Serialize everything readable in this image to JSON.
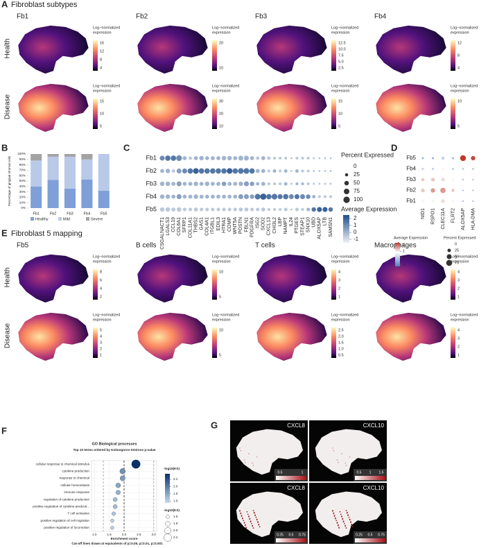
{
  "panel_a": {
    "letter": "A",
    "title": "Fibroblast subtypes",
    "columns": [
      "Fb1",
      "Fb2",
      "Fb3",
      "Fb4"
    ],
    "rows": [
      "Health",
      "Disease"
    ],
    "legend_title": [
      "Log−normalized",
      "expression"
    ],
    "colorbar_labels": [
      [
        [
          "16",
          "12",
          "8",
          "4"
        ],
        [
          "20",
          "10"
        ],
        [
          "12.5",
          "10.0",
          "7.5",
          "5.0",
          "2.5"
        ],
        [
          "12",
          "8",
          "4"
        ]
      ],
      [
        [
          "15",
          "10",
          "5"
        ],
        [
          "30",
          "20",
          "10"
        ],
        [
          "15",
          "10",
          "5"
        ],
        [
          "10",
          "5"
        ]
      ]
    ]
  },
  "panel_b": {
    "letter": "B",
    "type": "bar",
    "y_label": "Percentage of gingival stromal cells",
    "categories": [
      "Fb1",
      "Fb2",
      "Fb3",
      "Fb4",
      "Fb5"
    ],
    "series": [
      {
        "name": "Healthy",
        "color": "#7f9fd8",
        "values": [
          40,
          52,
          36,
          53,
          32
        ]
      },
      {
        "name": "Mild",
        "color": "#b9c9e8",
        "values": [
          48,
          43,
          59,
          37,
          68
        ]
      },
      {
        "name": "Severe",
        "color": "#a3a3a3",
        "values": [
          12,
          5,
          5,
          10,
          0
        ]
      }
    ],
    "ylim": [
      0,
      100
    ],
    "yticks": [
      {
        "value": 0,
        "label": "0%"
      },
      {
        "value": 10,
        "label": "10%"
      },
      {
        "value": 20,
        "label": "20%"
      },
      {
        "value": 30,
        "label": "30%"
      },
      {
        "value": 40,
        "label": "40%"
      },
      {
        "value": 50,
        "label": "50%"
      },
      {
        "value": 60,
        "label": "60%"
      },
      {
        "value": 70,
        "label": "70%"
      },
      {
        "value": 80,
        "label": "80%"
      },
      {
        "value": 90,
        "label": "90%"
      },
      {
        "value": 100,
        "label": "100%"
      }
    ]
  },
  "panel_c": {
    "letter": "C",
    "rows": [
      "Fb1",
      "Fb2",
      "Fb3",
      "Fb4",
      "Fb5"
    ],
    "genes": [
      "CSGALNACT1",
      "LGALS3",
      "CCL19",
      "COL6A1",
      "SFRP1",
      "COL11A1",
      "THBS2",
      "GAS1",
      "COL4A1",
      "ITGBL1",
      "EDIL3",
      "HTRA1",
      "COMP",
      "WNT5A",
      "POSTN",
      "FBLN1",
      "PDGFRA",
      "ISG2",
      "SOD2",
      "CXCL13",
      "CHI3L2",
      "LBP",
      "NAMPT",
      "IL24",
      "PTGES",
      "STEAP1",
      "SNX10",
      "UBD",
      "ALOX5AP",
      "LTB",
      "SAMSN1"
    ],
    "percent": [
      [
        60,
        70,
        70,
        80,
        40,
        30,
        40,
        50,
        40,
        40,
        40,
        50,
        50,
        40,
        60,
        60,
        40,
        30,
        40,
        30,
        20,
        20,
        20,
        10,
        20,
        20,
        20,
        10,
        10,
        10,
        10
      ],
      [
        40,
        50,
        30,
        60,
        60,
        70,
        80,
        70,
        70,
        70,
        70,
        70,
        80,
        70,
        80,
        80,
        70,
        40,
        40,
        20,
        30,
        20,
        30,
        10,
        30,
        20,
        20,
        10,
        10,
        10,
        10
      ],
      [
        50,
        50,
        40,
        60,
        40,
        40,
        50,
        40,
        50,
        40,
        40,
        50,
        40,
        40,
        50,
        60,
        50,
        30,
        40,
        20,
        20,
        20,
        30,
        10,
        20,
        20,
        20,
        10,
        10,
        10,
        10
      ],
      [
        50,
        50,
        40,
        60,
        40,
        40,
        50,
        40,
        40,
        40,
        40,
        40,
        40,
        40,
        60,
        60,
        50,
        80,
        90,
        70,
        80,
        60,
        70,
        60,
        60,
        60,
        50,
        30,
        20,
        20,
        20
      ],
      [
        50,
        50,
        40,
        50,
        30,
        30,
        40,
        30,
        30,
        30,
        30,
        30,
        30,
        30,
        40,
        40,
        30,
        30,
        40,
        20,
        20,
        20,
        30,
        10,
        30,
        20,
        30,
        50,
        60,
        60,
        50
      ]
    ],
    "average": [
      [
        1,
        1.5,
        1.5,
        1,
        0,
        -0.5,
        0,
        0,
        0,
        0,
        0,
        0,
        0,
        0,
        0,
        0,
        0,
        -0.5,
        0,
        -0.5,
        -0.5,
        -0.5,
        -0.5,
        -0.5,
        -0.5,
        -0.5,
        -0.5,
        -0.5,
        -0.5,
        -0.5,
        -0.5
      ],
      [
        0,
        0,
        -0.5,
        0.5,
        1,
        1.5,
        2,
        1.5,
        1.5,
        1.5,
        1.5,
        1.5,
        2,
        1.5,
        1.5,
        1.5,
        1.5,
        0,
        0,
        -0.5,
        0,
        -0.5,
        0,
        -0.5,
        0,
        -0.5,
        -0.5,
        -0.5,
        -0.5,
        -0.5,
        -0.5
      ],
      [
        0,
        0,
        0,
        0.5,
        0,
        0,
        0,
        0,
        0,
        0,
        0,
        0.5,
        0,
        0,
        0,
        0.5,
        0.5,
        0,
        0,
        -0.5,
        -0.5,
        -0.5,
        0,
        -0.5,
        0,
        0,
        -0.5,
        -0.5,
        -0.5,
        -0.5,
        -0.5
      ],
      [
        0,
        0,
        0,
        0.5,
        0,
        0,
        0,
        0,
        0,
        0,
        0,
        0,
        0,
        0,
        0.5,
        0.5,
        0.5,
        1.5,
        2,
        1.5,
        1.5,
        1.5,
        1.5,
        1,
        1.5,
        1,
        1,
        0,
        -0.5,
        -0.5,
        -0.5
      ],
      [
        -0.5,
        -0.5,
        -0.5,
        -0.5,
        -0.5,
        -0.5,
        -0.5,
        -0.5,
        -0.5,
        -0.5,
        -0.5,
        -0.5,
        -0.5,
        -0.5,
        -0.5,
        -0.5,
        -0.5,
        -0.5,
        -0.5,
        -0.5,
        -0.5,
        -0.5,
        -0.5,
        -0.5,
        -0.5,
        -0.5,
        0,
        1.5,
        2,
        2,
        1.5
      ]
    ],
    "size_legend": {
      "title": "Percent Expressed",
      "ticks": [
        0,
        25,
        50,
        75,
        100
      ]
    },
    "color_legend": {
      "title": "Average Expression",
      "ticks": [
        2,
        1,
        0,
        -1
      ],
      "lim": [
        -1.5,
        2.5
      ]
    }
  },
  "panel_d": {
    "letter": "D",
    "rows": [
      "Fb5",
      "Fb4",
      "Fb3",
      "Fb2",
      "Fb1"
    ],
    "genes": [
      "NID1",
      "RSPO1",
      "CLEC11A",
      "FLRT2",
      "ALOX5AP",
      "HLA-DMA"
    ],
    "percent": [
      [
        10,
        10,
        20,
        10,
        70,
        40
      ],
      [
        10,
        10,
        20,
        10,
        10,
        10
      ],
      [
        20,
        30,
        30,
        10,
        5,
        5
      ],
      [
        30,
        40,
        60,
        20,
        5,
        5
      ],
      [
        20,
        20,
        30,
        10,
        5,
        5
      ]
    ],
    "average": [
      [
        -0.5,
        -0.5,
        -0.3,
        -0.5,
        2,
        1.8
      ],
      [
        -0.3,
        -0.3,
        0,
        -0.3,
        -0.3,
        -0.3
      ],
      [
        0.5,
        0.5,
        0.3,
        0,
        -0.5,
        -0.5
      ],
      [
        0.5,
        1,
        1,
        0.5,
        -0.5,
        -0.5
      ],
      [
        0,
        0,
        0.3,
        0,
        -0.5,
        -0.5
      ]
    ],
    "color_legend": {
      "title": "Average Expression",
      "ticks": [
        2,
        1,
        0,
        -1
      ],
      "lim": [
        -1.3,
        2.3
      ]
    },
    "size_legend": {
      "title": "Percent Expressed",
      "ticks": [
        0,
        25,
        50,
        75
      ]
    }
  },
  "panel_e": {
    "letter": "E",
    "title": "Fibroblast 5 mapping",
    "columns": [
      "Fb5",
      "B cells",
      "T cells",
      "Macrophages"
    ],
    "rows": [
      "Health",
      "Disease"
    ],
    "legend_title": [
      "Log−normalized",
      "expression"
    ],
    "colorbar_labels": [
      [
        [
          "8",
          "6",
          "4",
          "2"
        ],
        [
          "10",
          "5"
        ],
        [
          "4",
          "3",
          "2",
          "1"
        ],
        [
          "4",
          "3",
          "2",
          "1"
        ]
      ],
      [
        [
          "5",
          "4",
          "3",
          "2",
          "1"
        ],
        [
          "10",
          "5"
        ],
        [
          "2.5",
          "2.0",
          "1.5",
          "1.0",
          "0.5"
        ],
        [
          "4",
          "3",
          "2",
          "1"
        ]
      ]
    ]
  },
  "panel_f": {
    "letter": "F",
    "title": "GO Biological processes",
    "subtitle": "Top 10 terms ordered by Kolmogorov-Smirnov p-value",
    "terms": [
      "cellular response to chemical stimulus",
      "cytokine production",
      "response to chemical",
      "cellular homeostasis",
      "immune response",
      "regulation of cytokine production",
      "positive regulation of cytokine producti...",
      "T cell activation",
      "positive regulation of cell migration",
      "positive regulation of locomotion"
    ],
    "enrichment": [
      2.4,
      1.95,
      1.95,
      1.8,
      1.8,
      1.7,
      1.7,
      1.65,
      1.6,
      1.6
    ],
    "neg_log10_ks": [
      2.35,
      1.9,
      1.85,
      1.8,
      1.75,
      1.7,
      1.7,
      1.65,
      1.6,
      1.6
    ],
    "x_label": "Enrichment score",
    "xlim": [
      0.9,
      3.1
    ],
    "xticks": [
      {
        "value": 1,
        "label": "1.0"
      },
      1.5,
      {
        "value": 2,
        "label": "2.0"
      },
      2.5,
      {
        "value": 3,
        "label": "3.0"
      }
    ],
    "cutoffs": [
      1.3,
      2,
      3
    ],
    "footnote": "Cut-off lines drawn at equivalents of p=0.05, p=0.01, p=0.001",
    "color_legend": {
      "title": "-log10(KS)",
      "ticks": [
        2.2,
        {
          "value": 2,
          "label": "2.0"
        },
        1.8,
        1.6
      ],
      "lim": [
        1.55,
        2.35
      ]
    },
    "size_legend": {
      "title": "-log10(KS)",
      "ticks": [
        1.6,
        1.8,
        {
          "value": 2,
          "label": "2.0"
        },
        2.2
      ]
    }
  },
  "panel_g": {
    "letter": "G",
    "maps": [
      {
        "label": "CXCL8",
        "colorbar": [
          "0.5",
          "1"
        ]
      },
      {
        "label": "CXCL10",
        "colorbar": [
          "0.5",
          "1",
          "1.5"
        ]
      },
      {
        "label": "CXCL8",
        "colorbar": [
          "0.25",
          "0.5",
          "0.75"
        ]
      },
      {
        "label": "CXCL10",
        "colorbar": [
          "0.25",
          "0.5",
          "0.75"
        ]
      }
    ]
  }
}
